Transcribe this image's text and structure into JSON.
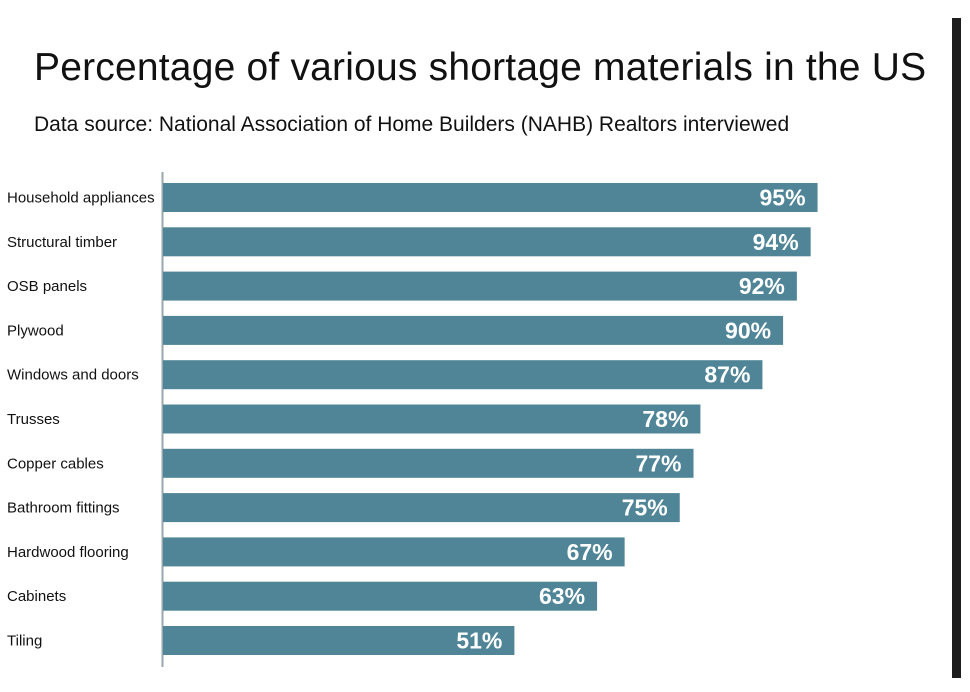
{
  "chart_data": {
    "type": "bar",
    "orientation": "horizontal",
    "title": "Percentage of various shortage materials in the US",
    "subtitle": "Data source: National Association of Home Builders (NAHB) Realtors interviewed",
    "categories": [
      "Household appliances",
      "Structural timber",
      "OSB panels",
      "Plywood",
      "Windows and doors",
      "Trusses",
      "Copper cables",
      "Bathroom fittings",
      "Hardwood flooring",
      "Cabinets",
      "Tiling"
    ],
    "values": [
      95,
      94,
      92,
      90,
      87,
      78,
      77,
      75,
      67,
      63,
      51
    ],
    "value_labels": [
      "95%",
      "94%",
      "92%",
      "90%",
      "87%",
      "78%",
      "77%",
      "75%",
      "67%",
      "63%",
      "51%"
    ],
    "xlim": [
      0,
      100
    ],
    "grid": false,
    "bar_color": "#4f8597"
  }
}
